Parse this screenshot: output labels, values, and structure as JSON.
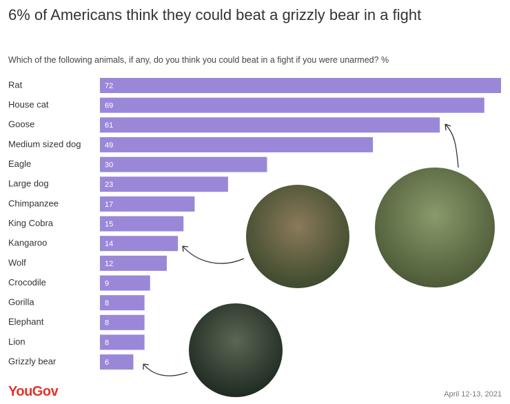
{
  "chart_data": {
    "type": "bar",
    "title": "6% of Americans think they could beat a grizzly bear in a fight",
    "subtitle": "Which of the following animals, if any, do you think you could beat in a fight if you were unarmed? %",
    "categories": [
      "Rat",
      "House cat",
      "Goose",
      "Medium sized dog",
      "Eagle",
      "Large dog",
      "Chimpanzee",
      "King Cobra",
      "Kangaroo",
      "Wolf",
      "Crocodile",
      "Gorilla",
      "Elephant",
      "Lion",
      "Grizzly bear"
    ],
    "values": [
      72,
      69,
      61,
      49,
      30,
      23,
      17,
      15,
      14,
      12,
      9,
      8,
      8,
      8,
      6
    ],
    "color": "#9b87d8",
    "source": "YouGov",
    "date": "April 12-13, 2021"
  }
}
